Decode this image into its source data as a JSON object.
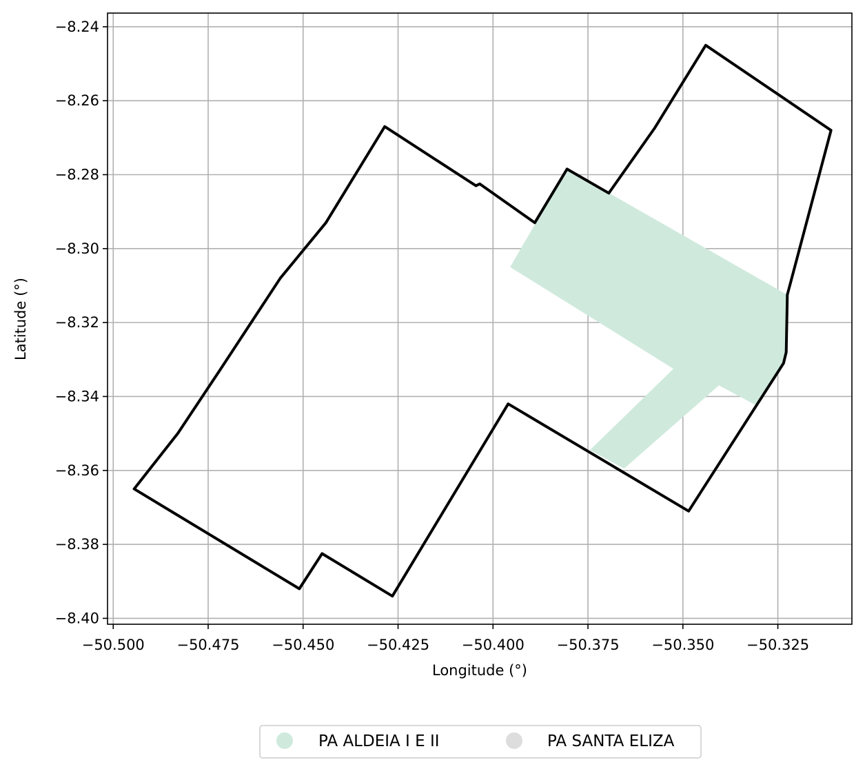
{
  "chart_data": {
    "type": "map",
    "xlabel": "Longitude (°)",
    "ylabel": "Latitude (°)",
    "xlim": [
      -50.5015,
      -50.3055
    ],
    "ylim": [
      -8.4016,
      -8.2363
    ],
    "grid": true,
    "x_ticks": [
      {
        "value": -50.5,
        "label": "−50.500"
      },
      {
        "value": -50.475,
        "label": "−50.475"
      },
      {
        "value": -50.45,
        "label": "−50.450"
      },
      {
        "value": -50.425,
        "label": "−50.425"
      },
      {
        "value": -50.4,
        "label": "−50.400"
      },
      {
        "value": -50.375,
        "label": "−50.375"
      },
      {
        "value": -50.35,
        "label": "−50.350"
      },
      {
        "value": -50.325,
        "label": "−50.325"
      }
    ],
    "y_ticks": [
      {
        "value": -8.24,
        "label": "−8.24"
      },
      {
        "value": -8.26,
        "label": "−8.26"
      },
      {
        "value": -8.28,
        "label": "−8.28"
      },
      {
        "value": -8.3,
        "label": "−8.30"
      },
      {
        "value": -8.32,
        "label": "−8.32"
      },
      {
        "value": -8.34,
        "label": "−8.34"
      },
      {
        "value": -8.36,
        "label": "−8.36"
      },
      {
        "value": -8.38,
        "label": "−8.38"
      },
      {
        "value": -8.4,
        "label": "−8.40"
      }
    ],
    "boundary": {
      "name": "study-area-boundary",
      "color": "#000000",
      "coords": [
        [
          -50.4945,
          -8.365
        ],
        [
          -50.483,
          -8.35
        ],
        [
          -50.472,
          -8.333
        ],
        [
          -50.456,
          -8.308
        ],
        [
          -50.444,
          -8.293
        ],
        [
          -50.4285,
          -8.267
        ],
        [
          -50.4045,
          -8.283
        ],
        [
          -50.4035,
          -8.2825
        ],
        [
          -50.389,
          -8.293
        ],
        [
          -50.3805,
          -8.2785
        ],
        [
          -50.3695,
          -8.285
        ],
        [
          -50.3575,
          -8.2675
        ],
        [
          -50.344,
          -8.245
        ],
        [
          -50.311,
          -8.268
        ],
        [
          -50.3225,
          -8.3125
        ],
        [
          -50.3228,
          -8.328
        ],
        [
          -50.3235,
          -8.331
        ],
        [
          -50.3485,
          -8.371
        ],
        [
          -50.396,
          -8.342
        ],
        [
          -50.4265,
          -8.394
        ],
        [
          -50.445,
          -8.3825
        ],
        [
          -50.451,
          -8.392
        ],
        [
          -50.4945,
          -8.365
        ]
      ]
    },
    "legend": {
      "placement": "bottom-center",
      "entries": [
        {
          "label": "PA ALDEIA I E II",
          "color": "#cfeadd"
        },
        {
          "label": "PA SANTA ELIZA",
          "color": "#dddddd"
        }
      ]
    },
    "layers": [
      {
        "name": "PA ALDEIA I E II",
        "color": "#cfeadd",
        "coords": [
          [
            -50.3805,
            -8.2785
          ],
          [
            -50.3225,
            -8.3125
          ],
          [
            -50.3228,
            -8.328
          ],
          [
            -50.3235,
            -8.331
          ],
          [
            -50.3305,
            -8.3425
          ],
          [
            -50.3405,
            -8.337
          ],
          [
            -50.3655,
            -8.3595
          ],
          [
            -50.3745,
            -8.3545
          ],
          [
            -50.3525,
            -8.3325
          ],
          [
            -50.3955,
            -8.305
          ],
          [
            -50.3805,
            -8.2785
          ]
        ]
      },
      {
        "name": "PA SANTA ELIZA",
        "color": "#dddddd",
        "coords": []
      }
    ]
  }
}
